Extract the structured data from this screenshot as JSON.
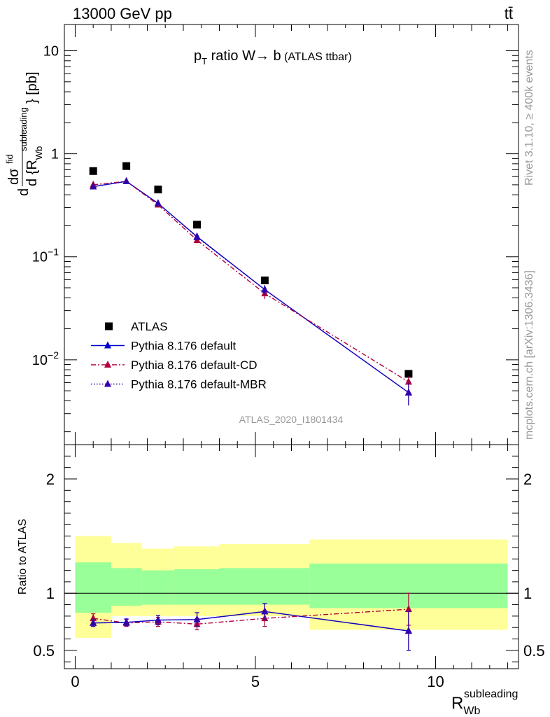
{
  "header": {
    "energy": "13000 GeV pp",
    "process": "tt̄"
  },
  "side_labels": {
    "rivet": "Rivet 3.1.10, ≥ 400k events",
    "mcplots": "mcplots.cern.ch [arXiv:1306.3436]"
  },
  "chart_data": [
    {
      "type": "line",
      "title": "pT ratio W → b (ATLAS ttbar)",
      "title_parts": {
        "p": "p",
        "sub": "T",
        "rest": " ratio W",
        "arrow": "→",
        "b": " b",
        "small": " (ATLAS ttbar)"
      },
      "ylabel": "d σ^fid / d {R_Wb^subleading} [pb]",
      "ylabel_parts": {
        "d1": "d",
        "sigma": "dσ",
        "fid": "fid",
        "d2": "d {R",
        "sub": "Wb",
        "sup": "subleading",
        "close": "} [pb]"
      },
      "y_scale": "log",
      "ylim": [
        0.0015,
        18
      ],
      "xlim": [
        -0.3,
        12.3
      ],
      "y_ticks": [
        {
          "value": 0.01,
          "base": "10",
          "exp": "−2"
        },
        {
          "value": 0.1,
          "base": "10",
          "exp": "−1"
        },
        {
          "value": 1,
          "base": "1",
          "exp": ""
        },
        {
          "value": 10,
          "base": "10",
          "exp": ""
        }
      ],
      "watermark": "ATLAS_2020_I1801434",
      "legend_position": "lower-left",
      "series": [
        {
          "name": "ATLAS",
          "style": "data",
          "color": "#000000",
          "x": [
            0.5,
            1.42,
            2.3,
            3.38,
            5.26,
            9.25
          ],
          "y": [
            0.68,
            0.76,
            0.45,
            0.205,
            0.059,
            0.0073
          ]
        },
        {
          "name": "Pythia 8.176 default",
          "style": "solid",
          "color": "#0000cc",
          "x": [
            0.5,
            1.42,
            2.3,
            3.38,
            5.26,
            9.25
          ],
          "y": [
            0.48,
            0.54,
            0.33,
            0.157,
            0.048,
            0.0048
          ],
          "yerr": [
            0.02,
            0.02,
            0.015,
            0.01,
            0.005,
            0.0012
          ]
        },
        {
          "name": "Pythia 8.176 default-CD",
          "style": "dashdot",
          "color": "#b0003a",
          "x": [
            0.5,
            1.42,
            2.3,
            3.38,
            5.26,
            9.25
          ],
          "y": [
            0.5,
            0.54,
            0.32,
            0.145,
            0.044,
            0.0061
          ],
          "yerr": [
            0.02,
            0.02,
            0.015,
            0.01,
            0.005,
            0.0008
          ]
        },
        {
          "name": "Pythia 8.176 default-MBR",
          "style": "dotted",
          "color": "#3300aa",
          "x": [
            0.5,
            1.42,
            2.3,
            3.38,
            5.26,
            9.25
          ],
          "y": [
            0.48,
            0.54,
            0.33,
            0.155,
            0.048,
            0.0048
          ],
          "yerr": [
            0.02,
            0.02,
            0.015,
            0.01,
            0.005,
            0.0012
          ]
        }
      ]
    },
    {
      "type": "line",
      "ylabel": "Ratio to ATLAS",
      "xlabel": "R_Wb^subleading",
      "xlabel_parts": {
        "R": "R",
        "sub": "Wb",
        "sup": "subleading"
      },
      "xlim": [
        -0.3,
        12.3
      ],
      "ylim": [
        0.34,
        2.3
      ],
      "x_ticks": [
        0,
        5,
        10
      ],
      "y_ticks": [
        0.5,
        1,
        2
      ],
      "bands": {
        "edges": [
          0,
          1,
          1.85,
          2.75,
          4.0,
          6.5,
          12.0
        ],
        "yellow_lo": [
          0.61,
          0.8,
          0.8,
          0.8,
          0.8,
          0.68
        ],
        "yellow_hi": [
          1.5,
          1.44,
          1.39,
          1.41,
          1.43,
          1.47
        ],
        "green_lo": [
          0.83,
          0.89,
          0.9,
          0.9,
          0.9,
          0.87
        ],
        "green_hi": [
          1.27,
          1.22,
          1.2,
          1.21,
          1.22,
          1.26
        ],
        "yellow_color": "#ffff99",
        "green_color": "#99ff99"
      },
      "series": [
        {
          "name": "Pythia 8.176 default",
          "style": "solid",
          "color": "#0000cc",
          "x": [
            0.5,
            1.42,
            2.3,
            3.38,
            5.26,
            9.25
          ],
          "y": [
            0.74,
            0.745,
            0.765,
            0.77,
            0.84,
            0.67
          ],
          "yerr": [
            0.03,
            0.03,
            0.04,
            0.06,
            0.07,
            0.17
          ]
        },
        {
          "name": "Pythia 8.176 default-CD",
          "style": "dashdot",
          "color": "#b0003a",
          "x": [
            0.5,
            1.42,
            2.3,
            3.38,
            5.26,
            9.25
          ],
          "y": [
            0.78,
            0.74,
            0.75,
            0.73,
            0.78,
            0.86
          ],
          "yerr": [
            0.04,
            0.03,
            0.04,
            0.05,
            0.07,
            0.14
          ]
        },
        {
          "name": "Pythia 8.176 default-MBR",
          "style": "dotted",
          "color": "#3300aa",
          "x": [
            0.5,
            1.42,
            2.3,
            3.38,
            5.26,
            9.25
          ],
          "y": [
            0.74,
            0.745,
            0.765,
            0.77,
            0.84,
            0.67
          ],
          "yerr": [
            0.03,
            0.03,
            0.04,
            0.06,
            0.07,
            0.17
          ]
        }
      ]
    }
  ]
}
